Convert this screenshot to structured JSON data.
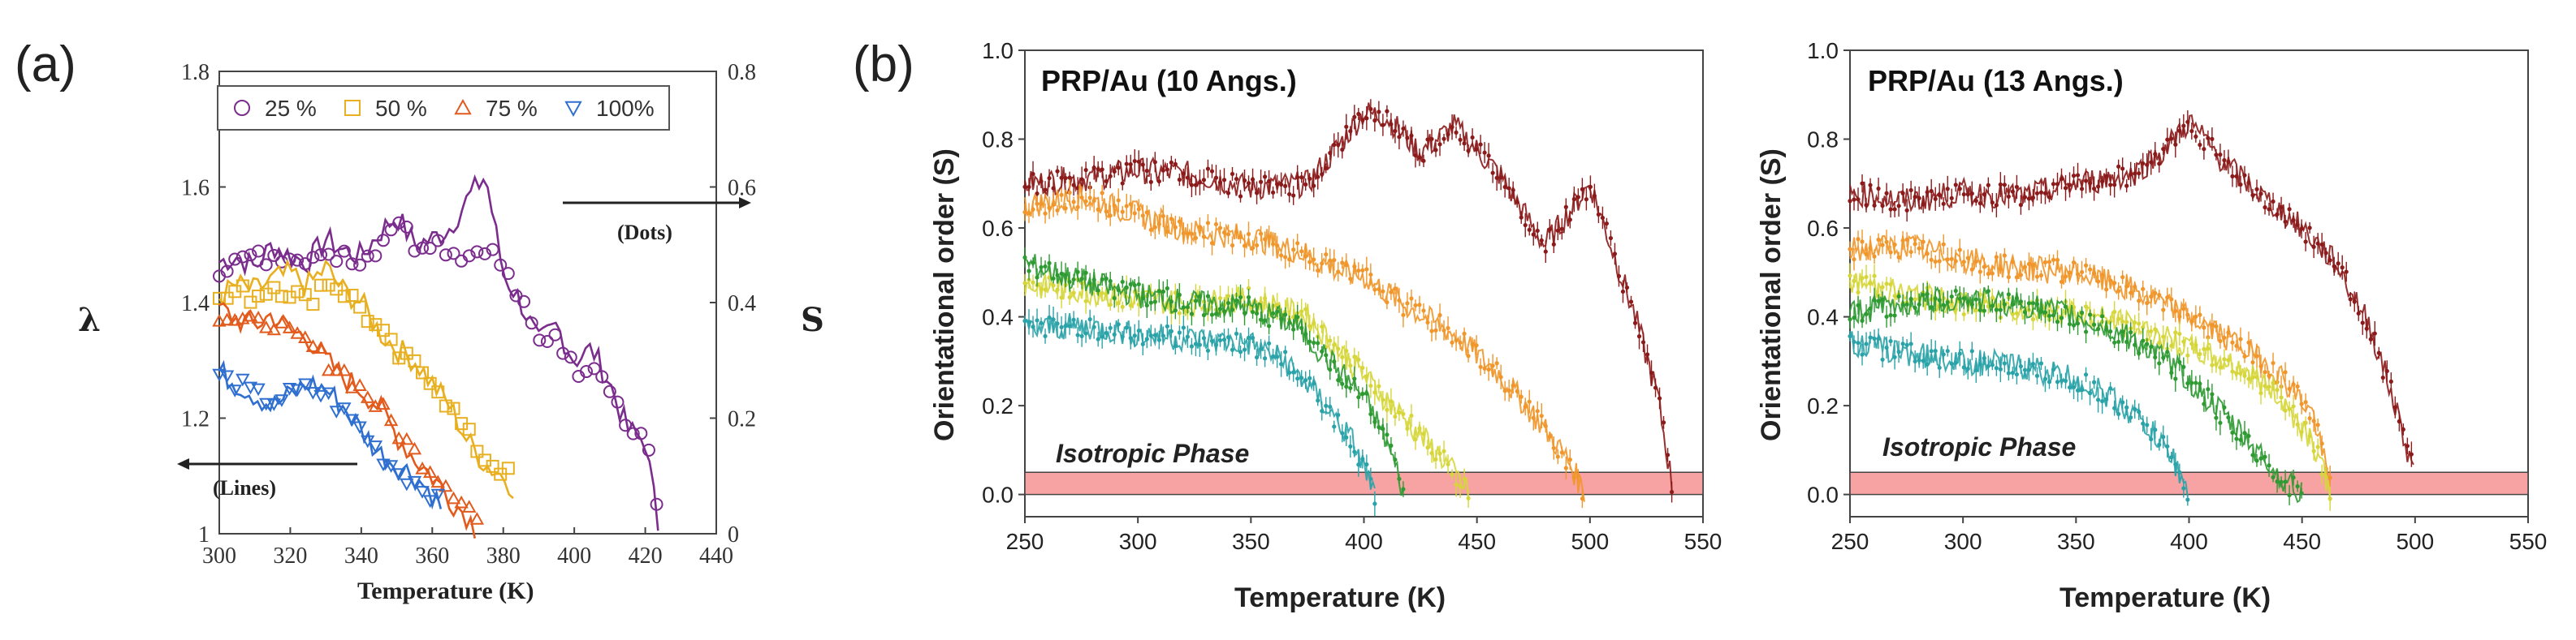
{
  "figure": {
    "label_a": "(a)",
    "label_b": "(b)"
  },
  "chart_data": [
    {
      "id": "a",
      "type": "line",
      "xlabel": "Temperature (K)",
      "ylabel": "λ",
      "y2label": "S",
      "xlim": [
        300,
        440
      ],
      "ylim": [
        1.0,
        1.8
      ],
      "y2lim": [
        0,
        0.8
      ],
      "xticks": [
        300,
        320,
        340,
        360,
        380,
        400,
        420,
        440
      ],
      "yticks": [
        1,
        1.2,
        1.4,
        1.6,
        1.8
      ],
      "y2ticks": [
        0,
        0.2,
        0.4,
        0.6,
        0.8
      ],
      "annotations": {
        "lines": "(Lines)",
        "dots": "(Dots)"
      },
      "legend": [
        "25 %",
        "50 %",
        "75 %",
        "100%"
      ],
      "series": [
        {
          "name": "25 %",
          "color": "#7b2d8e",
          "marker": "circle",
          "x": [
            300,
            305,
            310,
            315,
            320,
            325,
            330,
            335,
            340,
            345,
            350,
            355,
            360,
            365,
            370,
            375,
            380,
            385,
            390,
            395,
            400,
            405,
            410,
            415,
            420,
            424
          ],
          "lambda": [
            1.47,
            1.48,
            1.46,
            1.5,
            1.48,
            1.47,
            1.51,
            1.49,
            1.48,
            1.52,
            1.55,
            1.5,
            1.51,
            1.53,
            1.58,
            1.62,
            1.45,
            1.4,
            1.33,
            1.36,
            1.3,
            1.32,
            1.26,
            1.18,
            1.16,
            1.0
          ],
          "S": [
            0.46,
            0.47,
            0.48,
            0.47,
            0.49,
            0.48,
            0.47,
            0.49,
            0.47,
            0.5,
            0.55,
            0.5,
            0.51,
            0.49,
            0.48,
            0.5,
            0.46,
            0.4,
            0.33,
            0.35,
            0.28,
            0.3,
            0.26,
            0.18,
            0.17,
            0.02
          ]
        },
        {
          "name": "50 %",
          "color": "#e8b020",
          "marker": "square",
          "x": [
            300,
            305,
            310,
            315,
            320,
            325,
            330,
            335,
            340,
            345,
            350,
            355,
            360,
            365,
            370,
            375,
            380,
            383
          ],
          "lambda": [
            1.41,
            1.43,
            1.42,
            1.44,
            1.45,
            1.43,
            1.46,
            1.42,
            1.4,
            1.35,
            1.32,
            1.3,
            1.26,
            1.22,
            1.16,
            1.12,
            1.1,
            1.08
          ],
          "S": [
            0.4,
            0.42,
            0.41,
            0.43,
            0.42,
            0.4,
            0.44,
            0.42,
            0.39,
            0.35,
            0.31,
            0.29,
            0.27,
            0.22,
            0.17,
            0.13,
            0.11,
            0.09
          ]
        },
        {
          "name": "75 %",
          "color": "#e25a1c",
          "marker": "triangle-up",
          "x": [
            300,
            305,
            310,
            315,
            320,
            325,
            330,
            335,
            340,
            345,
            350,
            355,
            360,
            365,
            370,
            373
          ],
          "lambda": [
            1.39,
            1.37,
            1.36,
            1.38,
            1.35,
            1.34,
            1.3,
            1.27,
            1.25,
            1.22,
            1.17,
            1.13,
            1.1,
            1.06,
            1.03,
            1.0
          ],
          "S": [
            0.38,
            0.37,
            0.36,
            0.37,
            0.34,
            0.33,
            0.3,
            0.28,
            0.25,
            0.22,
            0.18,
            0.14,
            0.11,
            0.08,
            0.05,
            0.02
          ]
        },
        {
          "name": "100%",
          "color": "#2f6fd0",
          "marker": "triangle-down",
          "x": [
            300,
            305,
            310,
            315,
            320,
            325,
            330,
            335,
            340,
            345,
            350,
            355,
            360,
            363
          ],
          "lambda": [
            1.28,
            1.26,
            1.24,
            1.22,
            1.24,
            1.26,
            1.25,
            1.22,
            1.18,
            1.14,
            1.12,
            1.1,
            1.07,
            1.04
          ],
          "S": [
            0.27,
            0.26,
            0.24,
            0.23,
            0.24,
            0.25,
            0.24,
            0.21,
            0.18,
            0.14,
            0.11,
            0.09,
            0.07,
            0.04
          ]
        }
      ]
    },
    {
      "id": "b1",
      "type": "scatter",
      "title": "PRP/Au (10 Angs.)",
      "xlabel": "Temperature (K)",
      "ylabel": "Orientational order (S)",
      "xlim": [
        250,
        550
      ],
      "ylim": [
        -0.05,
        1.0
      ],
      "xticks": [
        250,
        300,
        350,
        400,
        450,
        500,
        550
      ],
      "yticks": [
        0.0,
        0.2,
        0.4,
        0.6,
        0.8,
        1.0
      ],
      "isotropic_band": [
        0.0,
        0.05
      ],
      "isotropic_label": "Isotropic Phase",
      "series": [
        {
          "color": "#8b1a1a",
          "x": [
            250,
            275,
            300,
            325,
            350,
            375,
            385,
            400,
            410,
            425,
            440,
            460,
            480,
            490,
            500,
            510,
            520,
            530,
            537
          ],
          "y": [
            0.7,
            0.71,
            0.73,
            0.72,
            0.69,
            0.7,
            0.76,
            0.86,
            0.85,
            0.77,
            0.83,
            0.72,
            0.56,
            0.63,
            0.7,
            0.55,
            0.4,
            0.22,
            0.0
          ]
        },
        {
          "color": "#f0962a",
          "x": [
            250,
            275,
            300,
            325,
            350,
            375,
            390,
            400,
            420,
            440,
            460,
            475,
            490,
            498
          ],
          "y": [
            0.65,
            0.67,
            0.63,
            0.59,
            0.58,
            0.54,
            0.5,
            0.49,
            0.42,
            0.36,
            0.27,
            0.18,
            0.08,
            0.0
          ]
        },
        {
          "color": "#d6d63a",
          "x": [
            250,
            275,
            300,
            325,
            350,
            375,
            390,
            405,
            420,
            435,
            447
          ],
          "y": [
            0.47,
            0.46,
            0.44,
            0.43,
            0.44,
            0.4,
            0.32,
            0.24,
            0.16,
            0.08,
            0.0
          ]
        },
        {
          "color": "#2e9a32",
          "x": [
            250,
            275,
            300,
            325,
            350,
            370,
            385,
            400,
            410,
            418
          ],
          "y": [
            0.52,
            0.48,
            0.45,
            0.43,
            0.42,
            0.38,
            0.3,
            0.22,
            0.12,
            0.0
          ]
        },
        {
          "color": "#2aa3a8",
          "x": [
            250,
            275,
            300,
            325,
            350,
            365,
            380,
            395,
            405
          ],
          "y": [
            0.37,
            0.38,
            0.36,
            0.35,
            0.34,
            0.3,
            0.22,
            0.12,
            0.0
          ]
        }
      ]
    },
    {
      "id": "b2",
      "type": "scatter",
      "title": "PRP/Au (13 Angs.)",
      "xlabel": "Temperature (K)",
      "ylabel": "Orientational order (S)",
      "xlim": [
        250,
        550
      ],
      "ylim": [
        -0.05,
        1.0
      ],
      "xticks": [
        250,
        300,
        350,
        400,
        450,
        500,
        550
      ],
      "yticks": [
        0.0,
        0.2,
        0.4,
        0.6,
        0.8,
        1.0
      ],
      "isotropic_band": [
        0.0,
        0.05
      ],
      "isotropic_label": "Isotropic Phase",
      "series": [
        {
          "color": "#8b1a1a",
          "x": [
            250,
            275,
            300,
            325,
            350,
            375,
            390,
            400,
            415,
            430,
            450,
            465,
            480,
            490,
            500
          ],
          "y": [
            0.68,
            0.66,
            0.68,
            0.67,
            0.7,
            0.72,
            0.78,
            0.84,
            0.75,
            0.68,
            0.6,
            0.52,
            0.38,
            0.22,
            0.04
          ]
        },
        {
          "color": "#f0962a",
          "x": [
            250,
            275,
            300,
            325,
            350,
            375,
            400,
            425,
            440,
            455,
            463
          ],
          "y": [
            0.55,
            0.56,
            0.53,
            0.51,
            0.5,
            0.46,
            0.4,
            0.33,
            0.27,
            0.18,
            0.0
          ]
        },
        {
          "color": "#d6d63a",
          "x": [
            250,
            275,
            300,
            325,
            350,
            375,
            400,
            425,
            440,
            455,
            463
          ],
          "y": [
            0.48,
            0.45,
            0.43,
            0.42,
            0.41,
            0.38,
            0.33,
            0.28,
            0.22,
            0.12,
            0.0
          ]
        },
        {
          "color": "#2e9a32",
          "x": [
            250,
            275,
            300,
            325,
            350,
            375,
            395,
            415,
            430,
            440,
            450
          ],
          "y": [
            0.41,
            0.43,
            0.44,
            0.43,
            0.4,
            0.35,
            0.28,
            0.18,
            0.1,
            0.04,
            0.0
          ]
        },
        {
          "color": "#2aa3a8",
          "x": [
            250,
            275,
            300,
            325,
            350,
            365,
            380,
            393,
            400
          ],
          "y": [
            0.34,
            0.32,
            0.3,
            0.29,
            0.26,
            0.22,
            0.16,
            0.08,
            0.0
          ]
        }
      ]
    }
  ]
}
